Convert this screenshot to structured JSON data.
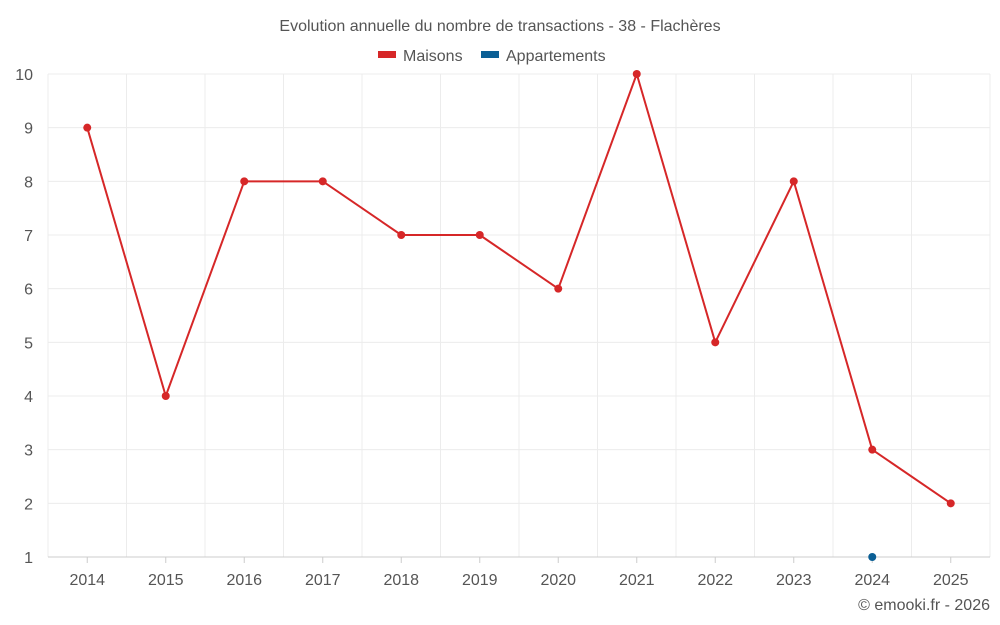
{
  "chart_data": {
    "type": "line",
    "title": "Evolution annuelle du nombre de transactions - 38 - Flachères",
    "categories": [
      "2014",
      "2015",
      "2016",
      "2017",
      "2018",
      "2019",
      "2020",
      "2021",
      "2022",
      "2023",
      "2024",
      "2025"
    ],
    "series": [
      {
        "name": "Maisons",
        "color": "#d62728",
        "values": [
          9,
          4,
          8,
          8,
          7,
          7,
          6,
          10,
          5,
          8,
          3,
          2
        ]
      },
      {
        "name": "Appartements",
        "color": "#0b5f95",
        "values": [
          null,
          null,
          null,
          null,
          null,
          null,
          null,
          null,
          null,
          null,
          1,
          null
        ]
      }
    ],
    "y_ticks": [
      "1",
      "2",
      "3",
      "4",
      "5",
      "6",
      "7",
      "8",
      "9",
      "10"
    ],
    "ylim": [
      1,
      10
    ],
    "grid": true,
    "legend_position": "top-center",
    "xlabel": "",
    "ylabel": ""
  },
  "credit": "© emooki.fr - 2026"
}
